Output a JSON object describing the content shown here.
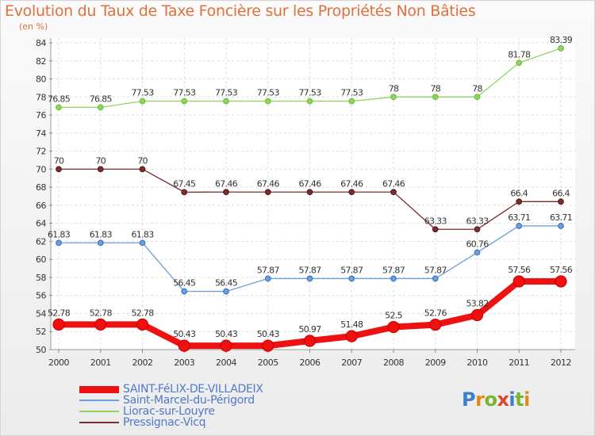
{
  "title": "Evolution du Taux de Taxe Foncière sur les Propriétés Non Bâties",
  "subtitle": "(en %)",
  "logo": {
    "letters": [
      {
        "ch": "P",
        "color": "#3a7fd0"
      },
      {
        "ch": "r",
        "color": "#e08a1e"
      },
      {
        "ch": "o",
        "color": "#79b530"
      },
      {
        "ch": "x",
        "color": "#e0442a"
      },
      {
        "ch": "i",
        "color": "#3a7fd0"
      },
      {
        "ch": "t",
        "color": "#79b530"
      },
      {
        "ch": "i",
        "color": "#e08a1e"
      }
    ]
  },
  "chart_data": {
    "type": "line",
    "x": [
      "2000",
      "2001",
      "2002",
      "2003",
      "2004",
      "2005",
      "2006",
      "2007",
      "2008",
      "2009",
      "2010",
      "2011",
      "2012"
    ],
    "ylim": [
      50,
      84
    ],
    "yticks": [
      50,
      52,
      54,
      56,
      58,
      60,
      62,
      64,
      66,
      68,
      70,
      72,
      74,
      76,
      78,
      80,
      82,
      84
    ],
    "grid": true,
    "legend_position": "bottom-left",
    "series": [
      {
        "name": "SAINT-FéLIX-DE-VILLADEIX",
        "color": "#ee1111",
        "marker": "#d00000",
        "width": 8,
        "values": [
          52.78,
          52.78,
          52.78,
          50.43,
          50.43,
          50.43,
          50.97,
          51.48,
          52.5,
          52.76,
          53.82,
          57.56,
          57.56
        ],
        "labels": [
          "52.78",
          "52.78",
          "52.78",
          "50.43",
          "50.43",
          "50.43",
          "50.97",
          "51.48",
          "52.5",
          "52.76",
          "53.82",
          "57.56",
          "57.56"
        ]
      },
      {
        "name": "Saint-Marcel-du-Périgord",
        "color": "#6d9fdc",
        "marker": "#3f76c2",
        "width": 1.3,
        "values": [
          61.83,
          61.83,
          61.83,
          56.45,
          56.45,
          57.87,
          57.87,
          57.87,
          57.87,
          57.87,
          60.76,
          63.71,
          63.71
        ],
        "labels": [
          "61.83",
          "61.83",
          "61.83",
          "56.45",
          "56.45",
          "57.87",
          "57.87",
          "57.87",
          "57.87",
          "57.87",
          "60.76",
          "63.71",
          "63.71"
        ]
      },
      {
        "name": "Liorac-sur-Louyre",
        "color": "#8fd45c",
        "marker": "#6fc13c",
        "width": 1.3,
        "values": [
          76.85,
          76.85,
          77.53,
          77.53,
          77.53,
          77.53,
          77.53,
          77.53,
          78,
          78,
          78,
          81.78,
          83.39
        ],
        "labels": [
          "76.85",
          "76.85",
          "77.53",
          "77.53",
          "77.53",
          "77.53",
          "77.53",
          "77.53",
          "78",
          "78",
          "78",
          "81.78",
          "83.39"
        ]
      },
      {
        "name": "Pressignac-Vicq",
        "color": "#7a2e2e",
        "marker": "#5e1c1c",
        "width": 1.3,
        "values": [
          70,
          70,
          70,
          67.45,
          67.46,
          67.46,
          67.46,
          67.46,
          67.46,
          63.33,
          63.33,
          66.4,
          66.4
        ],
        "labels": [
          "70",
          "70",
          "70",
          "67.45",
          "67.46",
          "67.46",
          "67.46",
          "67.46",
          "67.46",
          "63.33",
          "63.33",
          "66.4",
          "66.4"
        ]
      }
    ]
  }
}
